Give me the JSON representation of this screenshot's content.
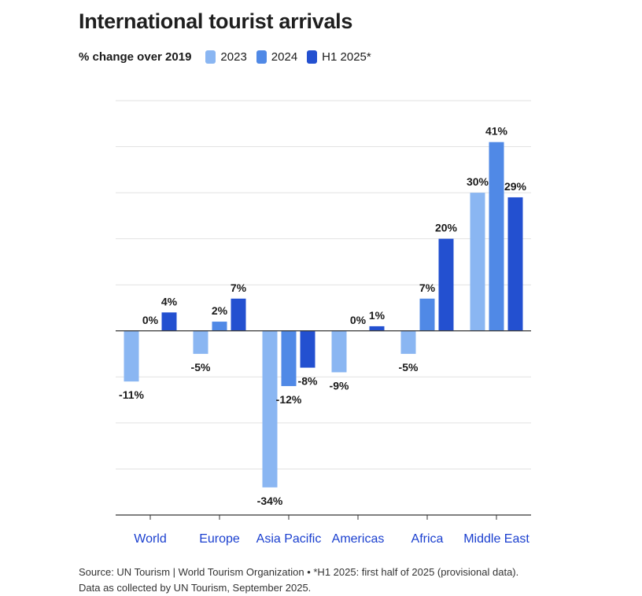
{
  "title": "International tourist arrivals",
  "legend": {
    "subtitle": "% change over 2019",
    "items": [
      {
        "label": "2023",
        "color": "#8ab6f2"
      },
      {
        "label": "2024",
        "color": "#5089e6"
      },
      {
        "label": "H1 2025*",
        "color": "#2350d0"
      }
    ]
  },
  "chart_data": {
    "type": "bar",
    "categories": [
      "World",
      "Europe",
      "Asia Pacific",
      "Americas",
      "Africa",
      "Middle East"
    ],
    "series": [
      {
        "name": "2023",
        "values": [
          -11,
          -5,
          -34,
          -9,
          -5,
          30
        ],
        "labels": [
          "-11%",
          "-5%",
          "-34%",
          "-9%",
          "-5%",
          "30%"
        ]
      },
      {
        "name": "2024",
        "values": [
          0,
          2,
          -12,
          0,
          7,
          41
        ],
        "labels": [
          "0%",
          "2%",
          "-12%",
          "0%",
          "7%",
          "41%"
        ]
      },
      {
        "name": "H1 2025*",
        "values": [
          4,
          7,
          -8,
          1,
          20,
          29
        ],
        "labels": [
          "4%",
          "7%",
          "-8%",
          "1%",
          "20%",
          "29%"
        ]
      }
    ],
    "ylim": [
      -40,
      50
    ],
    "grid": true,
    "category_label_color": "#1a3fcf"
  },
  "source": {
    "line1": "Source: UN Tourism | World Tourism Organization • *H1 2025: first half of 2025 (provisional data).",
    "line2": "Data as collected by UN Tourism, September 2025."
  }
}
